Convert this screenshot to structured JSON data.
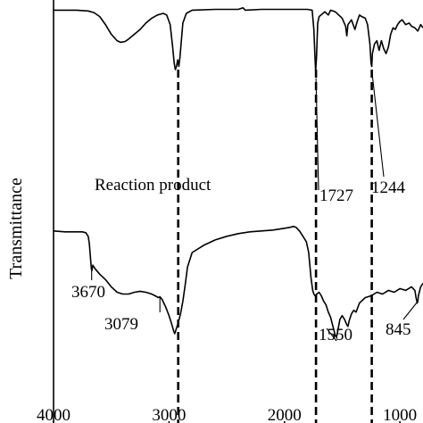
{
  "chart_data": {
    "type": "line",
    "title": "",
    "xlabel": "",
    "ylabel": "Transmittance",
    "xlim": [
      4000,
      800
    ],
    "x_reversed": true,
    "xticks": [
      4000,
      3000,
      2000,
      1000
    ],
    "xtick_labels": [
      "4000",
      "3000",
      "2000",
      "1000"
    ],
    "ylim": [
      0,
      100
    ],
    "y_ticks_shown": false,
    "grid": false,
    "legend": "none",
    "series": [
      {
        "name": "",
        "points": [
          [
            4000,
            97
          ],
          [
            3800,
            97
          ],
          [
            3700,
            96.5
          ],
          [
            3650,
            95.5
          ],
          [
            3600,
            93
          ],
          [
            3550,
            88
          ],
          [
            3500,
            82
          ],
          [
            3450,
            78
          ],
          [
            3420,
            77
          ],
          [
            3380,
            77.5
          ],
          [
            3350,
            79
          ],
          [
            3300,
            82
          ],
          [
            3250,
            85
          ],
          [
            3200,
            89
          ],
          [
            3150,
            92
          ],
          [
            3100,
            94
          ],
          [
            3050,
            95
          ],
          [
            3020,
            94
          ],
          [
            2990,
            88
          ],
          [
            2970,
            75
          ],
          [
            2955,
            64
          ],
          [
            2945,
            60
          ],
          [
            2935,
            62
          ],
          [
            2925,
            66
          ],
          [
            2915,
            62
          ],
          [
            2905,
            68
          ],
          [
            2880,
            89
          ],
          [
            2850,
            95
          ],
          [
            2800,
            97
          ],
          [
            2600,
            97.5
          ],
          [
            2400,
            97.5
          ],
          [
            2360,
            98.5
          ],
          [
            2340,
            97
          ],
          [
            2200,
            97.5
          ],
          [
            2000,
            97.5
          ],
          [
            1800,
            97.5
          ],
          [
            1760,
            97
          ],
          [
            1745,
            85
          ],
          [
            1737,
            70
          ],
          [
            1730,
            59
          ],
          [
            1722,
            68
          ],
          [
            1712,
            89
          ],
          [
            1700,
            93
          ],
          [
            1650,
            96
          ],
          [
            1620,
            94
          ],
          [
            1600,
            97
          ],
          [
            1560,
            96
          ],
          [
            1500,
            92
          ],
          [
            1470,
            87
          ],
          [
            1460,
            81
          ],
          [
            1450,
            88
          ],
          [
            1420,
            91
          ],
          [
            1390,
            85
          ],
          [
            1370,
            90
          ],
          [
            1350,
            94
          ],
          [
            1330,
            93
          ],
          [
            1300,
            92
          ],
          [
            1280,
            88
          ],
          [
            1260,
            76
          ],
          [
            1250,
            64
          ],
          [
            1244,
            62
          ],
          [
            1238,
            70
          ],
          [
            1220,
            76
          ],
          [
            1200,
            78
          ],
          [
            1180,
            72
          ],
          [
            1160,
            78
          ],
          [
            1140,
            73
          ],
          [
            1120,
            70
          ],
          [
            1100,
            74
          ],
          [
            1080,
            82
          ],
          [
            1060,
            86
          ],
          [
            1040,
            85
          ],
          [
            1020,
            88
          ],
          [
            1000,
            90
          ],
          [
            980,
            91
          ],
          [
            950,
            88
          ],
          [
            920,
            89
          ],
          [
            900,
            87
          ],
          [
            870,
            86
          ],
          [
            845,
            84
          ],
          [
            820,
            88
          ],
          [
            800,
            86
          ]
        ]
      },
      {
        "name": "Reaction product",
        "points": [
          [
            4000,
            61
          ],
          [
            3900,
            60.5
          ],
          [
            3800,
            60.5
          ],
          [
            3750,
            60.5
          ],
          [
            3720,
            60
          ],
          [
            3700,
            58
          ],
          [
            3690,
            54
          ],
          [
            3680,
            46
          ],
          [
            3672,
            40
          ],
          [
            3668,
            39
          ],
          [
            3660,
            42
          ],
          [
            3640,
            40
          ],
          [
            3600,
            37
          ],
          [
            3550,
            34
          ],
          [
            3500,
            30
          ],
          [
            3450,
            27
          ],
          [
            3400,
            26
          ],
          [
            3350,
            26
          ],
          [
            3300,
            27
          ],
          [
            3250,
            27.5
          ],
          [
            3200,
            27
          ],
          [
            3150,
            26
          ],
          [
            3120,
            25
          ],
          [
            3090,
            24
          ],
          [
            3079,
            24.5
          ],
          [
            3060,
            23
          ],
          [
            3030,
            19
          ],
          [
            3000,
            14
          ],
          [
            2975,
            9
          ],
          [
            2960,
            5.5
          ],
          [
            2950,
            4
          ],
          [
            2940,
            6
          ],
          [
            2930,
            8
          ],
          [
            2920,
            10
          ],
          [
            2900,
            15
          ],
          [
            2880,
            22
          ],
          [
            2860,
            31
          ],
          [
            2840,
            41
          ],
          [
            2800,
            49
          ],
          [
            2700,
            53
          ],
          [
            2600,
            56
          ],
          [
            2500,
            58
          ],
          [
            2400,
            59.5
          ],
          [
            2300,
            60.5
          ],
          [
            2200,
            61
          ],
          [
            2100,
            61.5
          ],
          [
            2000,
            62.5
          ],
          [
            1950,
            63
          ],
          [
            1920,
            63.5
          ],
          [
            1900,
            63
          ],
          [
            1870,
            61
          ],
          [
            1840,
            58
          ],
          [
            1810,
            55
          ],
          [
            1790,
            49
          ],
          [
            1770,
            35
          ],
          [
            1755,
            28
          ],
          [
            1745,
            26
          ],
          [
            1735,
            25
          ],
          [
            1720,
            26
          ],
          [
            1700,
            27
          ],
          [
            1680,
            25
          ],
          [
            1660,
            22
          ],
          [
            1640,
            20
          ],
          [
            1620,
            16
          ],
          [
            1600,
            13
          ],
          [
            1580,
            8
          ],
          [
            1560,
            3
          ],
          [
            1550,
            2
          ],
          [
            1540,
            5
          ],
          [
            1520,
            12
          ],
          [
            1500,
            14
          ],
          [
            1480,
            12
          ],
          [
            1460,
            9
          ],
          [
            1450,
            8
          ],
          [
            1440,
            11
          ],
          [
            1420,
            15
          ],
          [
            1400,
            17
          ],
          [
            1380,
            16
          ],
          [
            1350,
            21
          ],
          [
            1300,
            24
          ],
          [
            1250,
            25
          ],
          [
            1200,
            27
          ],
          [
            1150,
            26
          ],
          [
            1100,
            28
          ],
          [
            1050,
            27
          ],
          [
            1000,
            29
          ],
          [
            950,
            28
          ],
          [
            900,
            30
          ],
          [
            870,
            28
          ],
          [
            860,
            24
          ],
          [
            850,
            21
          ],
          [
            845,
            22
          ],
          [
            840,
            25
          ],
          [
            820,
            30
          ],
          [
            800,
            32
          ]
        ]
      }
    ],
    "reference_lines": [
      2920,
      1727,
      1244
    ],
    "annotations": [
      {
        "text": "Reaction product"
      },
      {
        "text": "1727",
        "x": 1727
      },
      {
        "text": "1244",
        "x": 1244
      },
      {
        "text": "3670",
        "x": 3670
      },
      {
        "text": "3079",
        "x": 3079
      },
      {
        "text": "1550",
        "x": 1550
      },
      {
        "text": "845",
        "x": 845
      }
    ]
  }
}
